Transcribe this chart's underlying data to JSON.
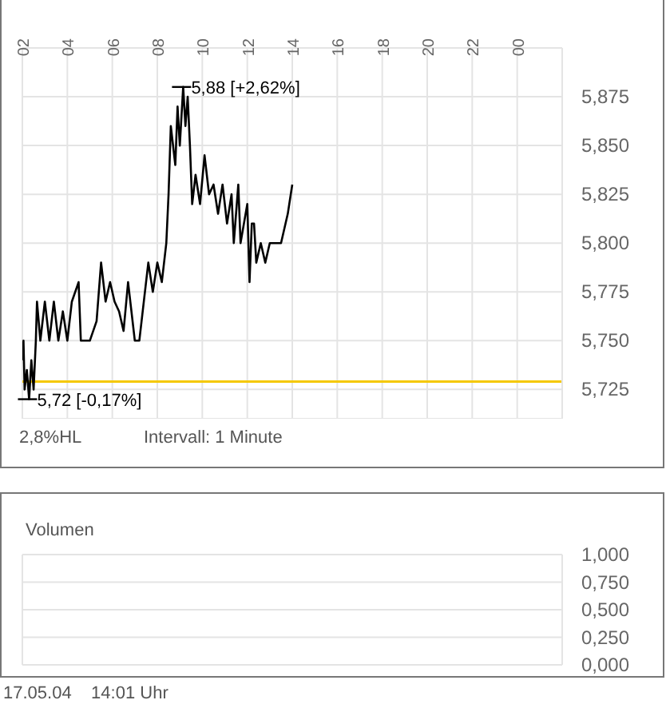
{
  "chart_data": [
    {
      "type": "line",
      "xlim": [
        "--05-17T02:00",
        "--05-18T02:00"
      ],
      "xticks": [
        {
          "value": "--05-17T02:00",
          "label": "02"
        },
        {
          "value": "--05-17T04:00",
          "label": "04"
        },
        {
          "value": "--05-17T06:00",
          "label": "06"
        },
        {
          "value": "--05-17T08:00",
          "label": "08"
        },
        {
          "value": "--05-17T10:00",
          "label": "10"
        },
        {
          "value": "--05-17T12:00",
          "label": "12"
        },
        {
          "value": "--05-17T14:00",
          "label": "14"
        },
        {
          "value": "--05-17T16:00",
          "label": "16"
        },
        {
          "value": "--05-17T18:00",
          "label": "18"
        },
        {
          "value": "--05-17T20:00",
          "label": "20"
        },
        {
          "value": "--05-17T22:00",
          "label": "22"
        },
        {
          "value": "--05-18T00:00",
          "label": "00"
        }
      ],
      "ylim": [
        5.71,
        5.9
      ],
      "yticks": [
        {
          "value": 5.725,
          "label": "5,725"
        },
        {
          "value": 5.75,
          "label": "5,750"
        },
        {
          "value": 5.775,
          "label": "5,775"
        },
        {
          "value": 5.8,
          "label": "5,800"
        },
        {
          "value": 5.825,
          "label": "5,825"
        },
        {
          "value": 5.85,
          "label": "5,850"
        },
        {
          "value": 5.875,
          "label": "5,875"
        }
      ],
      "grid": true,
      "marker": "none",
      "line_style": "solid",
      "series": [
        {
          "color": "#000000",
          "x": [
            "--05-17T02:00",
            "--05-17T02:03",
            "--05-17T02:06",
            "--05-17T02:12",
            "--05-17T02:18",
            "--05-17T02:24",
            "--05-17T02:30",
            "--05-17T02:36",
            "--05-17T02:39",
            "--05-17T02:48",
            "--05-17T03:00",
            "--05-17T03:12",
            "--05-17T03:24",
            "--05-17T03:36",
            "--05-17T03:48",
            "--05-17T04:00",
            "--05-17T04:12",
            "--05-17T04:30",
            "--05-17T04:36",
            "--05-17T05:00",
            "--05-17T05:18",
            "--05-17T05:30",
            "--05-17T05:42",
            "--05-17T05:54",
            "--05-17T06:06",
            "--05-17T06:18",
            "--05-17T06:30",
            "--05-17T06:42",
            "--05-17T07:00",
            "--05-17T07:12",
            "--05-17T07:24",
            "--05-17T07:36",
            "--05-17T07:48",
            "--05-17T08:00",
            "--05-17T08:12",
            "--05-17T08:24",
            "--05-17T08:30",
            "--05-17T08:36",
            "--05-17T08:48",
            "--05-17T08:54",
            "--05-17T09:00",
            "--05-17T09:09",
            "--05-17T09:15",
            "--05-17T09:21",
            "--05-17T09:27",
            "--05-17T09:33",
            "--05-17T09:42",
            "--05-17T09:54",
            "--05-17T10:06",
            "--05-17T10:18",
            "--05-17T10:30",
            "--05-17T10:42",
            "--05-17T10:54",
            "--05-17T11:06",
            "--05-17T11:18",
            "--05-17T11:24",
            "--05-17T11:36",
            "--05-17T11:42",
            "--05-17T12:00",
            "--05-17T12:06",
            "--05-17T12:12",
            "--05-17T12:18",
            "--05-17T12:24",
            "--05-17T12:36",
            "--05-17T12:48",
            "--05-17T13:00",
            "--05-17T13:30",
            "--05-17T13:42",
            "--05-17T13:48",
            "--05-17T14:00"
          ],
          "values": [
            5.74,
            5.75,
            5.725,
            5.735,
            5.72,
            5.74,
            5.725,
            5.75,
            5.77,
            5.75,
            5.77,
            5.75,
            5.77,
            5.75,
            5.765,
            5.75,
            5.77,
            5.78,
            5.75,
            5.75,
            5.76,
            5.79,
            5.77,
            5.78,
            5.77,
            5.765,
            5.755,
            5.78,
            5.75,
            5.75,
            5.77,
            5.79,
            5.775,
            5.79,
            5.78,
            5.8,
            5.825,
            5.86,
            5.84,
            5.87,
            5.85,
            5.88,
            5.86,
            5.875,
            5.85,
            5.82,
            5.835,
            5.82,
            5.845,
            5.825,
            5.83,
            5.815,
            5.83,
            5.81,
            5.825,
            5.8,
            5.83,
            5.8,
            5.82,
            5.78,
            5.81,
            5.81,
            5.79,
            5.8,
            5.79,
            5.8,
            5.8,
            5.81,
            5.815,
            5.83
          ]
        }
      ],
      "ref_lines": [
        {
          "axis": "y",
          "value": 5.729,
          "color": "#f5c800"
        }
      ],
      "annotations": [
        {
          "text": "5,88 [+2,62%]",
          "x": "--05-17T09:09",
          "y": 5.88
        },
        {
          "text": "5,72 [-0,17%]",
          "x": "--05-17T02:18",
          "y": 5.72
        },
        "2,8%HL",
        "Intervall: 1 Minute"
      ]
    },
    {
      "type": "bar",
      "title": "Volumen",
      "xlim": [
        "--05-17T02:00",
        "--05-18T02:00"
      ],
      "xticks": [
        {
          "value": "--05-17T02:00",
          "label": null
        },
        {
          "value": "--05-17T04:00",
          "label": null
        },
        {
          "value": "--05-17T06:00",
          "label": null
        },
        {
          "value": "--05-17T08:00",
          "label": null
        },
        {
          "value": "--05-17T10:00",
          "label": null
        },
        {
          "value": "--05-17T12:00",
          "label": null
        },
        {
          "value": "--05-17T14:00",
          "label": null
        },
        {
          "value": "--05-17T16:00",
          "label": null
        },
        {
          "value": "--05-17T18:00",
          "label": null
        },
        {
          "value": "--05-17T20:00",
          "label": null
        },
        {
          "value": "--05-17T22:00",
          "label": null
        },
        {
          "value": "--05-18T00:00",
          "label": null
        }
      ],
      "ylim": [
        0,
        1
      ],
      "yticks": [
        {
          "value": 0,
          "label": "0,000"
        },
        {
          "value": 0.25,
          "label": "0,250"
        },
        {
          "value": 0.5,
          "label": "0,500"
        },
        {
          "value": 0.75,
          "label": "0,750"
        },
        {
          "value": 1,
          "label": "1,000"
        }
      ],
      "grid": true,
      "tick_labels": "y",
      "annotations": [
        "17.05.04    14:01 Uhr"
      ]
    }
  ]
}
